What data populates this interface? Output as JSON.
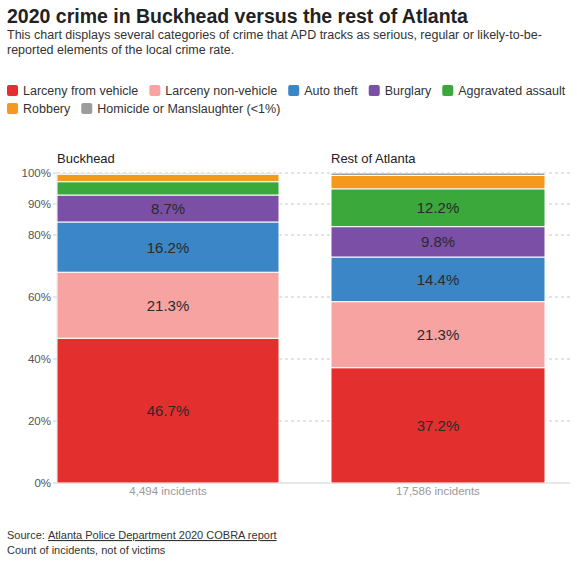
{
  "chart_data": {
    "type": "bar",
    "stacked": true,
    "data_labels": true,
    "grid": true,
    "title": "2020 crime in Buckhead versus the rest of Atlanta",
    "subtitle": "This chart displays several categories of crime that APD tracks as serious, regular or likely-to-be-reported elements of the local crime rate.",
    "categories": [
      "Buckhead",
      "Rest of Atlanta"
    ],
    "bar_notes": [
      "4,494 incidents",
      "17,586 incidents"
    ],
    "ylim": [
      0,
      100
    ],
    "yticks": [
      {
        "value": 0,
        "label": "0%"
      },
      {
        "value": 20,
        "label": "20%"
      },
      {
        "value": 40,
        "label": "40%"
      },
      {
        "value": 60,
        "label": "60%"
      },
      {
        "value": 80,
        "label": "80%"
      },
      {
        "value": 90,
        "label": "90%"
      },
      {
        "value": 100,
        "label": "100%"
      }
    ],
    "series": [
      {
        "name": "Larceny from vehicle",
        "color": "#e3302f",
        "values": [
          46.7,
          37.2
        ],
        "value_labels": [
          "46.7%",
          "37.2%"
        ]
      },
      {
        "name": "Larceny non-vehicle",
        "color": "#f6a3a2",
        "values": [
          21.3,
          21.3
        ],
        "value_labels": [
          "21.3%",
          "21.3%"
        ]
      },
      {
        "name": "Auto theft",
        "color": "#3a86c6",
        "values": [
          16.2,
          14.4
        ],
        "value_labels": [
          "16.2%",
          "14.4%"
        ]
      },
      {
        "name": "Burglary",
        "color": "#7b4fa6",
        "values": [
          8.7,
          9.8
        ],
        "value_labels": [
          "8.7%",
          "9.8%"
        ]
      },
      {
        "name": "Aggravated assault",
        "color": "#3aa83a",
        "values": [
          4.3,
          12.2
        ],
        "value_labels": [
          null,
          "12.2%"
        ]
      },
      {
        "name": "Robbery",
        "color": "#f4991c",
        "values": [
          2.4,
          4.3
        ],
        "value_labels": [
          null,
          null
        ]
      },
      {
        "name": "Homicide or Manslaughter (<1%)",
        "color": "#9c9c9c",
        "values": [
          0.4,
          0.8
        ],
        "value_labels": [
          null,
          null
        ]
      }
    ],
    "source_label": "Source:",
    "source": "Atlanta Police Department 2020 COBRA report",
    "note": "Count of incidents, not of victims"
  }
}
